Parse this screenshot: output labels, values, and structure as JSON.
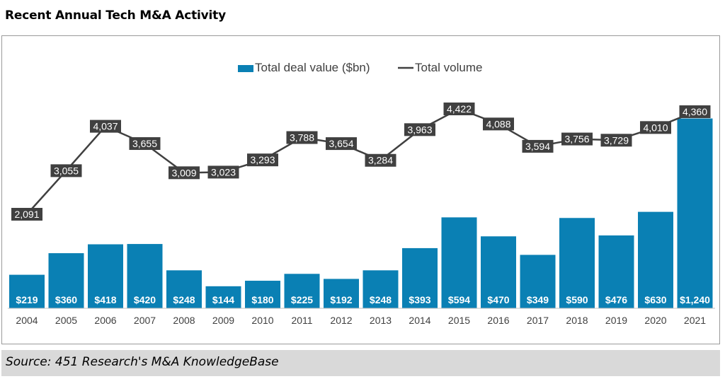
{
  "page": {
    "title": "Recent Annual Tech M&A Activity",
    "source": "Source: 451 Research's M&A KnowledgeBase"
  },
  "chart_data": {
    "type": "bar",
    "categories": [
      "2004",
      "2005",
      "2006",
      "2007",
      "2008",
      "2009",
      "2010",
      "2011",
      "2012",
      "2013",
      "2014",
      "2015",
      "2016",
      "2017",
      "2018",
      "2019",
      "2020",
      "2021"
    ],
    "series": [
      {
        "name": "Total deal value ($bn)",
        "type": "bar",
        "color": "#0a80b4",
        "values": [
          219,
          360,
          418,
          420,
          248,
          144,
          180,
          225,
          192,
          248,
          393,
          594,
          470,
          349,
          590,
          476,
          630,
          1240
        ],
        "labels": [
          "$219",
          "$360",
          "$418",
          "$420",
          "$248",
          "$144",
          "$180",
          "$225",
          "$192",
          "$248",
          "$393",
          "$594",
          "$470",
          "$349",
          "$590",
          "$476",
          "$630",
          "$1,240"
        ]
      },
      {
        "name": "Total volume",
        "type": "line",
        "color": "#404040",
        "values": [
          2091,
          3055,
          4037,
          3655,
          3009,
          3023,
          3293,
          3788,
          3654,
          3284,
          3963,
          4422,
          4088,
          3594,
          3756,
          3729,
          4010,
          4360
        ],
        "labels": [
          "2,091",
          "3,055",
          "4,037",
          "3,655",
          "3,009",
          "3,023",
          "3,293",
          "3,788",
          "3,654",
          "3,284",
          "3,963",
          "4,422",
          "4,088",
          "3,594",
          "3,756",
          "3,729",
          "4,010",
          "4,360"
        ]
      }
    ],
    "title": "",
    "xlabel": "",
    "ylabel": "",
    "legend": "top-center",
    "grid": false
  }
}
